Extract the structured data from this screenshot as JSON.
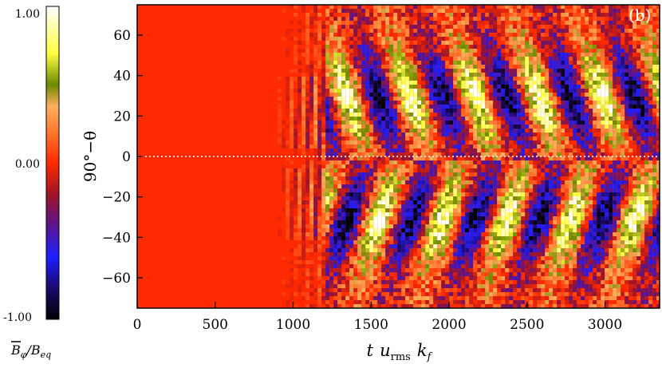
{
  "chart_data": {
    "type": "heatmap",
    "panel_label": "(b)",
    "xlabel": "t u_rms k_f",
    "ylabel": "90°−θ",
    "xlim": [
      0,
      3350
    ],
    "ylim": [
      -75,
      75
    ],
    "x_ticks": [
      0,
      500,
      1000,
      1500,
      2000,
      2500,
      3000
    ],
    "y_ticks": [
      60,
      40,
      20,
      0,
      -20,
      -40,
      -60
    ],
    "y_tick_labels": [
      "60",
      "40",
      "20",
      "0",
      "−20",
      "−40",
      "−60"
    ],
    "equator_line": {
      "y": 0,
      "style": "dotted",
      "color": "#ffffff"
    },
    "colorbar": {
      "label": "B̄_φ/B_eq",
      "min": -1.0,
      "max": 1.0,
      "tick_labels": [
        "1.00",
        "0.00",
        "-1.00"
      ],
      "colormap": [
        "#000000",
        "#1a0a6e",
        "#1e1eff",
        "#5a148c",
        "#a01428",
        "#ff2a00",
        "#ff7a30",
        "#ffb060",
        "#6b8a00",
        "#ffff40",
        "#ffffff"
      ]
    },
    "background_value": 0.0,
    "dynamo_onset_t": 850,
    "saturation_t": 1200,
    "butterfly_period_t": 410,
    "butterfly_cycle_starts_t": [
      1350,
      1760,
      2170,
      2580,
      2990
    ],
    "description_of_field": "Field ~0 before t≈850, small-scale striations 850–1300, then equatorward-migrating dynamo waves of alternating sign in both hemispheres"
  },
  "x_axis": {
    "tick_labels": [
      "0",
      "500",
      "1000",
      "1500",
      "2000",
      "2500",
      "3000"
    ],
    "label_t": "t",
    "label_u": "u",
    "label_u_sub": "rms",
    "label_k": "k",
    "label_k_sub": "f"
  },
  "y_axis": {
    "tick_labels": [
      "60",
      "40",
      "20",
      "0",
      "−20",
      "−40",
      "−60"
    ],
    "label": "90°−θ"
  },
  "colorbar_labels": {
    "top": "1.00",
    "mid": "0.00",
    "bottom": "-1.00",
    "label_B": "B",
    "label_sub": "φ",
    "label_rest": "/B",
    "label_eq": "eq"
  },
  "panel": {
    "label": "(b)"
  }
}
